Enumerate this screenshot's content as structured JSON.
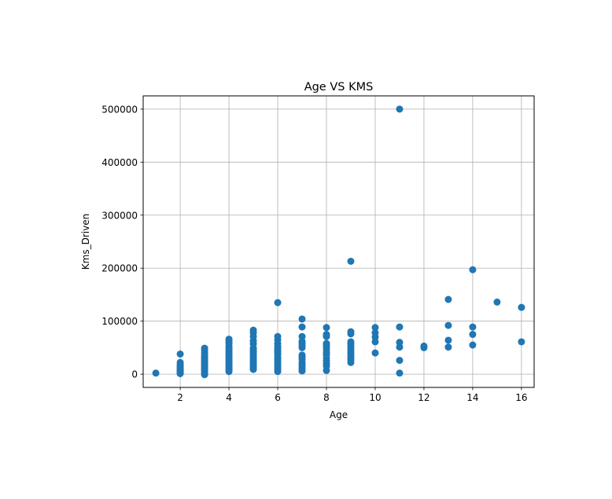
{
  "chart_data": {
    "type": "scatter",
    "title": "Age VS KMS",
    "xlabel": "Age",
    "ylabel": "Kms_Driven",
    "xlim": [
      0.48,
      16.52
    ],
    "ylim": [
      -25000,
      525000
    ],
    "xticks": [
      2,
      4,
      6,
      8,
      10,
      12,
      14,
      16
    ],
    "yticks": [
      0,
      100000,
      200000,
      300000,
      400000,
      500000
    ],
    "xtick_labels": [
      "2",
      "4",
      "6",
      "8",
      "10",
      "12",
      "14",
      "16"
    ],
    "ytick_labels": [
      "0",
      "100000",
      "200000",
      "300000",
      "400000",
      "500000"
    ],
    "grid": true,
    "marker_color": "#1f77b4",
    "points": [
      [
        1,
        2000
      ],
      [
        2,
        38000
      ],
      [
        2,
        22000
      ],
      [
        2,
        18000
      ],
      [
        2,
        15000
      ],
      [
        2,
        12000
      ],
      [
        2,
        10000
      ],
      [
        2,
        8000
      ],
      [
        2,
        6000
      ],
      [
        2,
        4000
      ],
      [
        2,
        2000
      ],
      [
        2,
        1000
      ],
      [
        3,
        49000
      ],
      [
        3,
        45000
      ],
      [
        3,
        40000
      ],
      [
        3,
        35000
      ],
      [
        3,
        32000
      ],
      [
        3,
        30000
      ],
      [
        3,
        27000
      ],
      [
        3,
        25000
      ],
      [
        3,
        22000
      ],
      [
        3,
        20000
      ],
      [
        3,
        17000
      ],
      [
        3,
        15000
      ],
      [
        3,
        12000
      ],
      [
        3,
        10000
      ],
      [
        3,
        8000
      ],
      [
        3,
        5000
      ],
      [
        3,
        2000
      ],
      [
        3,
        -1000
      ],
      [
        4,
        66000
      ],
      [
        4,
        62000
      ],
      [
        4,
        58000
      ],
      [
        4,
        53000
      ],
      [
        4,
        49000
      ],
      [
        4,
        45000
      ],
      [
        4,
        42000
      ],
      [
        4,
        39000
      ],
      [
        4,
        36000
      ],
      [
        4,
        33000
      ],
      [
        4,
        30000
      ],
      [
        4,
        27000
      ],
      [
        4,
        24000
      ],
      [
        4,
        21000
      ],
      [
        4,
        18000
      ],
      [
        4,
        15000
      ],
      [
        4,
        12000
      ],
      [
        4,
        9000
      ],
      [
        4,
        5000
      ],
      [
        5,
        83000
      ],
      [
        5,
        78000
      ],
      [
        5,
        71000
      ],
      [
        5,
        63000
      ],
      [
        5,
        57000
      ],
      [
        5,
        49000
      ],
      [
        5,
        45000
      ],
      [
        5,
        42000
      ],
      [
        5,
        39000
      ],
      [
        5,
        35000
      ],
      [
        5,
        32000
      ],
      [
        5,
        28000
      ],
      [
        5,
        25000
      ],
      [
        5,
        22000
      ],
      [
        5,
        18000
      ],
      [
        5,
        15000
      ],
      [
        5,
        12000
      ],
      [
        5,
        9000
      ],
      [
        6,
        135000
      ],
      [
        6,
        71000
      ],
      [
        6,
        65000
      ],
      [
        6,
        58000
      ],
      [
        6,
        53000
      ],
      [
        6,
        49000
      ],
      [
        6,
        45000
      ],
      [
        6,
        42000
      ],
      [
        6,
        38000
      ],
      [
        6,
        33000
      ],
      [
        6,
        29000
      ],
      [
        6,
        25000
      ],
      [
        6,
        21000
      ],
      [
        6,
        17000
      ],
      [
        6,
        13000
      ],
      [
        6,
        9000
      ],
      [
        6,
        5000
      ],
      [
        7,
        104000
      ],
      [
        7,
        89000
      ],
      [
        7,
        71000
      ],
      [
        7,
        62000
      ],
      [
        7,
        58000
      ],
      [
        7,
        54000
      ],
      [
        7,
        50000
      ],
      [
        7,
        36000
      ],
      [
        7,
        32000
      ],
      [
        7,
        28000
      ],
      [
        7,
        22000
      ],
      [
        7,
        18000
      ],
      [
        7,
        14000
      ],
      [
        7,
        10000
      ],
      [
        7,
        6000
      ],
      [
        8,
        88000
      ],
      [
        8,
        75000
      ],
      [
        8,
        71000
      ],
      [
        8,
        58000
      ],
      [
        8,
        54000
      ],
      [
        8,
        50000
      ],
      [
        8,
        45000
      ],
      [
        8,
        40000
      ],
      [
        8,
        36000
      ],
      [
        8,
        30000
      ],
      [
        8,
        25000
      ],
      [
        8,
        20000
      ],
      [
        8,
        15000
      ],
      [
        8,
        7000
      ],
      [
        9,
        213000
      ],
      [
        9,
        80000
      ],
      [
        9,
        76000
      ],
      [
        9,
        61000
      ],
      [
        9,
        57000
      ],
      [
        9,
        53000
      ],
      [
        9,
        48000
      ],
      [
        9,
        44000
      ],
      [
        9,
        40000
      ],
      [
        9,
        36000
      ],
      [
        9,
        31000
      ],
      [
        9,
        27000
      ],
      [
        9,
        22000
      ],
      [
        10,
        88000
      ],
      [
        10,
        78000
      ],
      [
        10,
        70000
      ],
      [
        10,
        61000
      ],
      [
        10,
        40000
      ],
      [
        11,
        500000
      ],
      [
        11,
        89000
      ],
      [
        11,
        60000
      ],
      [
        11,
        51000
      ],
      [
        11,
        26000
      ],
      [
        11,
        2000
      ],
      [
        12,
        53000
      ],
      [
        12,
        50000
      ],
      [
        13,
        141000
      ],
      [
        13,
        92000
      ],
      [
        13,
        64000
      ],
      [
        13,
        51000
      ],
      [
        14,
        197000
      ],
      [
        14,
        89000
      ],
      [
        14,
        75000
      ],
      [
        14,
        55000
      ],
      [
        15,
        136000
      ],
      [
        16,
        126000
      ],
      [
        16,
        61000
      ]
    ]
  }
}
